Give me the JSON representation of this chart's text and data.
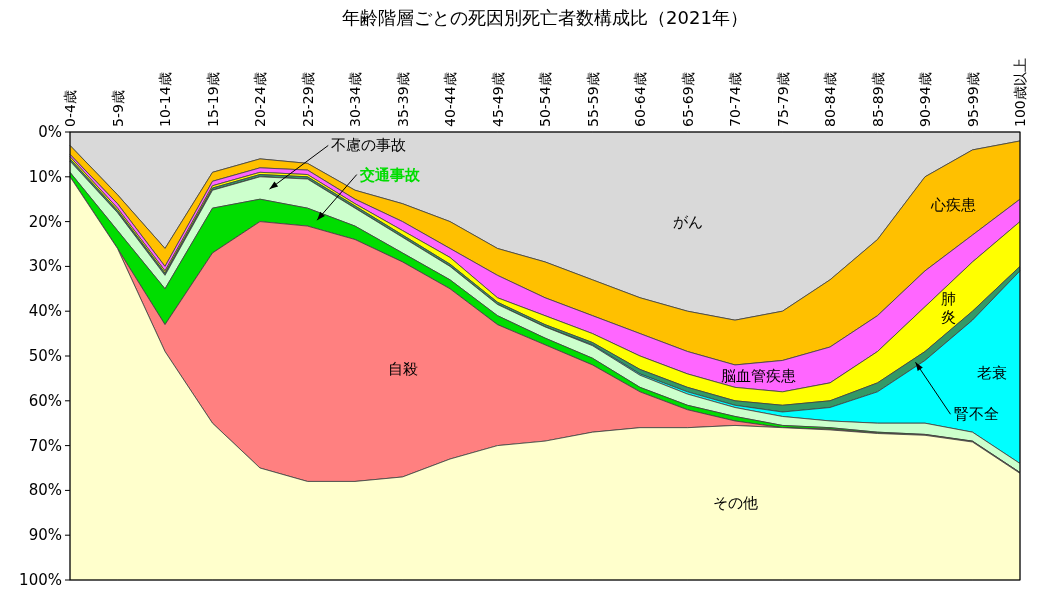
{
  "chart_data": {
    "type": "area",
    "stacked": true,
    "title": "年齢階層ごとの死因別死亡者数構成比（2021年）",
    "categories": [
      "0-4歳",
      "5-9歳",
      "10-14歳",
      "15-19歳",
      "20-24歳",
      "25-29歳",
      "30-34歳",
      "35-39歳",
      "40-44歳",
      "45-49歳",
      "50-54歳",
      "55-59歳",
      "60-64歳",
      "65-69歳",
      "70-74歳",
      "75-79歳",
      "80-84歳",
      "85-89歳",
      "90-94歳",
      "95-99歳",
      "100歳以上"
    ],
    "ylim": [
      100,
      0
    ],
    "yticks": [
      {
        "value": 0,
        "label": "0%"
      },
      {
        "value": 10,
        "label": "10%"
      },
      {
        "value": 20,
        "label": "20%"
      },
      {
        "value": 30,
        "label": "30%"
      },
      {
        "value": 40,
        "label": "40%"
      },
      {
        "value": 50,
        "label": "50%"
      },
      {
        "value": 60,
        "label": "60%"
      },
      {
        "value": 70,
        "label": "70%"
      },
      {
        "value": 80,
        "label": "80%"
      },
      {
        "value": 90,
        "label": "90%"
      },
      {
        "value": 100,
        "label": "100%"
      }
    ],
    "series": [
      {
        "name": "がん",
        "color": "#d9d9d9",
        "values": [
          3,
          14,
          26,
          9,
          6,
          7,
          13,
          16,
          20,
          26,
          29,
          33,
          37,
          40,
          42,
          40,
          33,
          24,
          10,
          4,
          2
        ]
      },
      {
        "name": "心疾患",
        "color": "#ffc000",
        "values": [
          2,
          2,
          4,
          2,
          2,
          1.5,
          2,
          4,
          6,
          6,
          8,
          8,
          8,
          9,
          10,
          11,
          15,
          17,
          21,
          19,
          13
        ]
      },
      {
        "name": "脳血管疾患",
        "color": "#ff66ff",
        "values": [
          0.5,
          1,
          1,
          1,
          1,
          1,
          1,
          2,
          2,
          5,
          4,
          4,
          5,
          5,
          5,
          7,
          8,
          8,
          8,
          6,
          5
        ]
      },
      {
        "name": "肺炎",
        "color": "#ffff00",
        "values": [
          0.5,
          0.5,
          0.5,
          0.5,
          0.5,
          0.5,
          0.5,
          1,
          1.5,
          1,
          2,
          2,
          3,
          3,
          3,
          3,
          4,
          7,
          10,
          11,
          10
        ]
      },
      {
        "name": "腎不全",
        "color": "#339966",
        "values": [
          0.5,
          0.5,
          0.5,
          0.5,
          0.5,
          0.5,
          0.5,
          0.5,
          0.5,
          0.5,
          0.5,
          0.5,
          1,
          1,
          1,
          1.5,
          1.5,
          2,
          2,
          2,
          1
        ]
      },
      {
        "name": "老衰",
        "color": "#00ffff",
        "values": [
          0,
          0,
          0,
          0,
          0,
          0,
          0,
          0,
          0,
          0,
          0,
          0.2,
          0.3,
          0.5,
          0.5,
          1,
          3,
          7,
          14,
          25,
          43
        ]
      },
      {
        "name": "不慮の事故",
        "color": "#ccffcc",
        "values": [
          2.5,
          4,
          3,
          4,
          5,
          6.5,
          4,
          3.5,
          3,
          2.5,
          2.5,
          2.8,
          2.7,
          2.5,
          2,
          2,
          1.5,
          2,
          2.5,
          2,
          2
        ]
      },
      {
        "name": "交通事故",
        "color": "#00dd00",
        "values": [
          1,
          4,
          8,
          10,
          5,
          4,
          3,
          2,
          2,
          2,
          1.5,
          1.5,
          1,
          1,
          1,
          0.5,
          0.3,
          0.2,
          0.1,
          0.1,
          0.1
        ]
      },
      {
        "name": "自殺",
        "color": "#ff8080",
        "values": [
          0,
          0,
          6,
          38,
          55,
          57,
          54,
          48,
          38,
          27,
          21.5,
          15,
          8,
          4,
          1,
          0,
          0.2,
          0.1,
          0.1,
          0.1,
          0.1
        ]
      },
      {
        "name": "その他",
        "color": "#ffffcc",
        "values": [
          90,
          74,
          51,
          35,
          25,
          22,
          22,
          23,
          27,
          30,
          31,
          33,
          34,
          34,
          34.5,
          34,
          33.5,
          32.7,
          32.3,
          30.8,
          23.8
        ]
      }
    ]
  }
}
